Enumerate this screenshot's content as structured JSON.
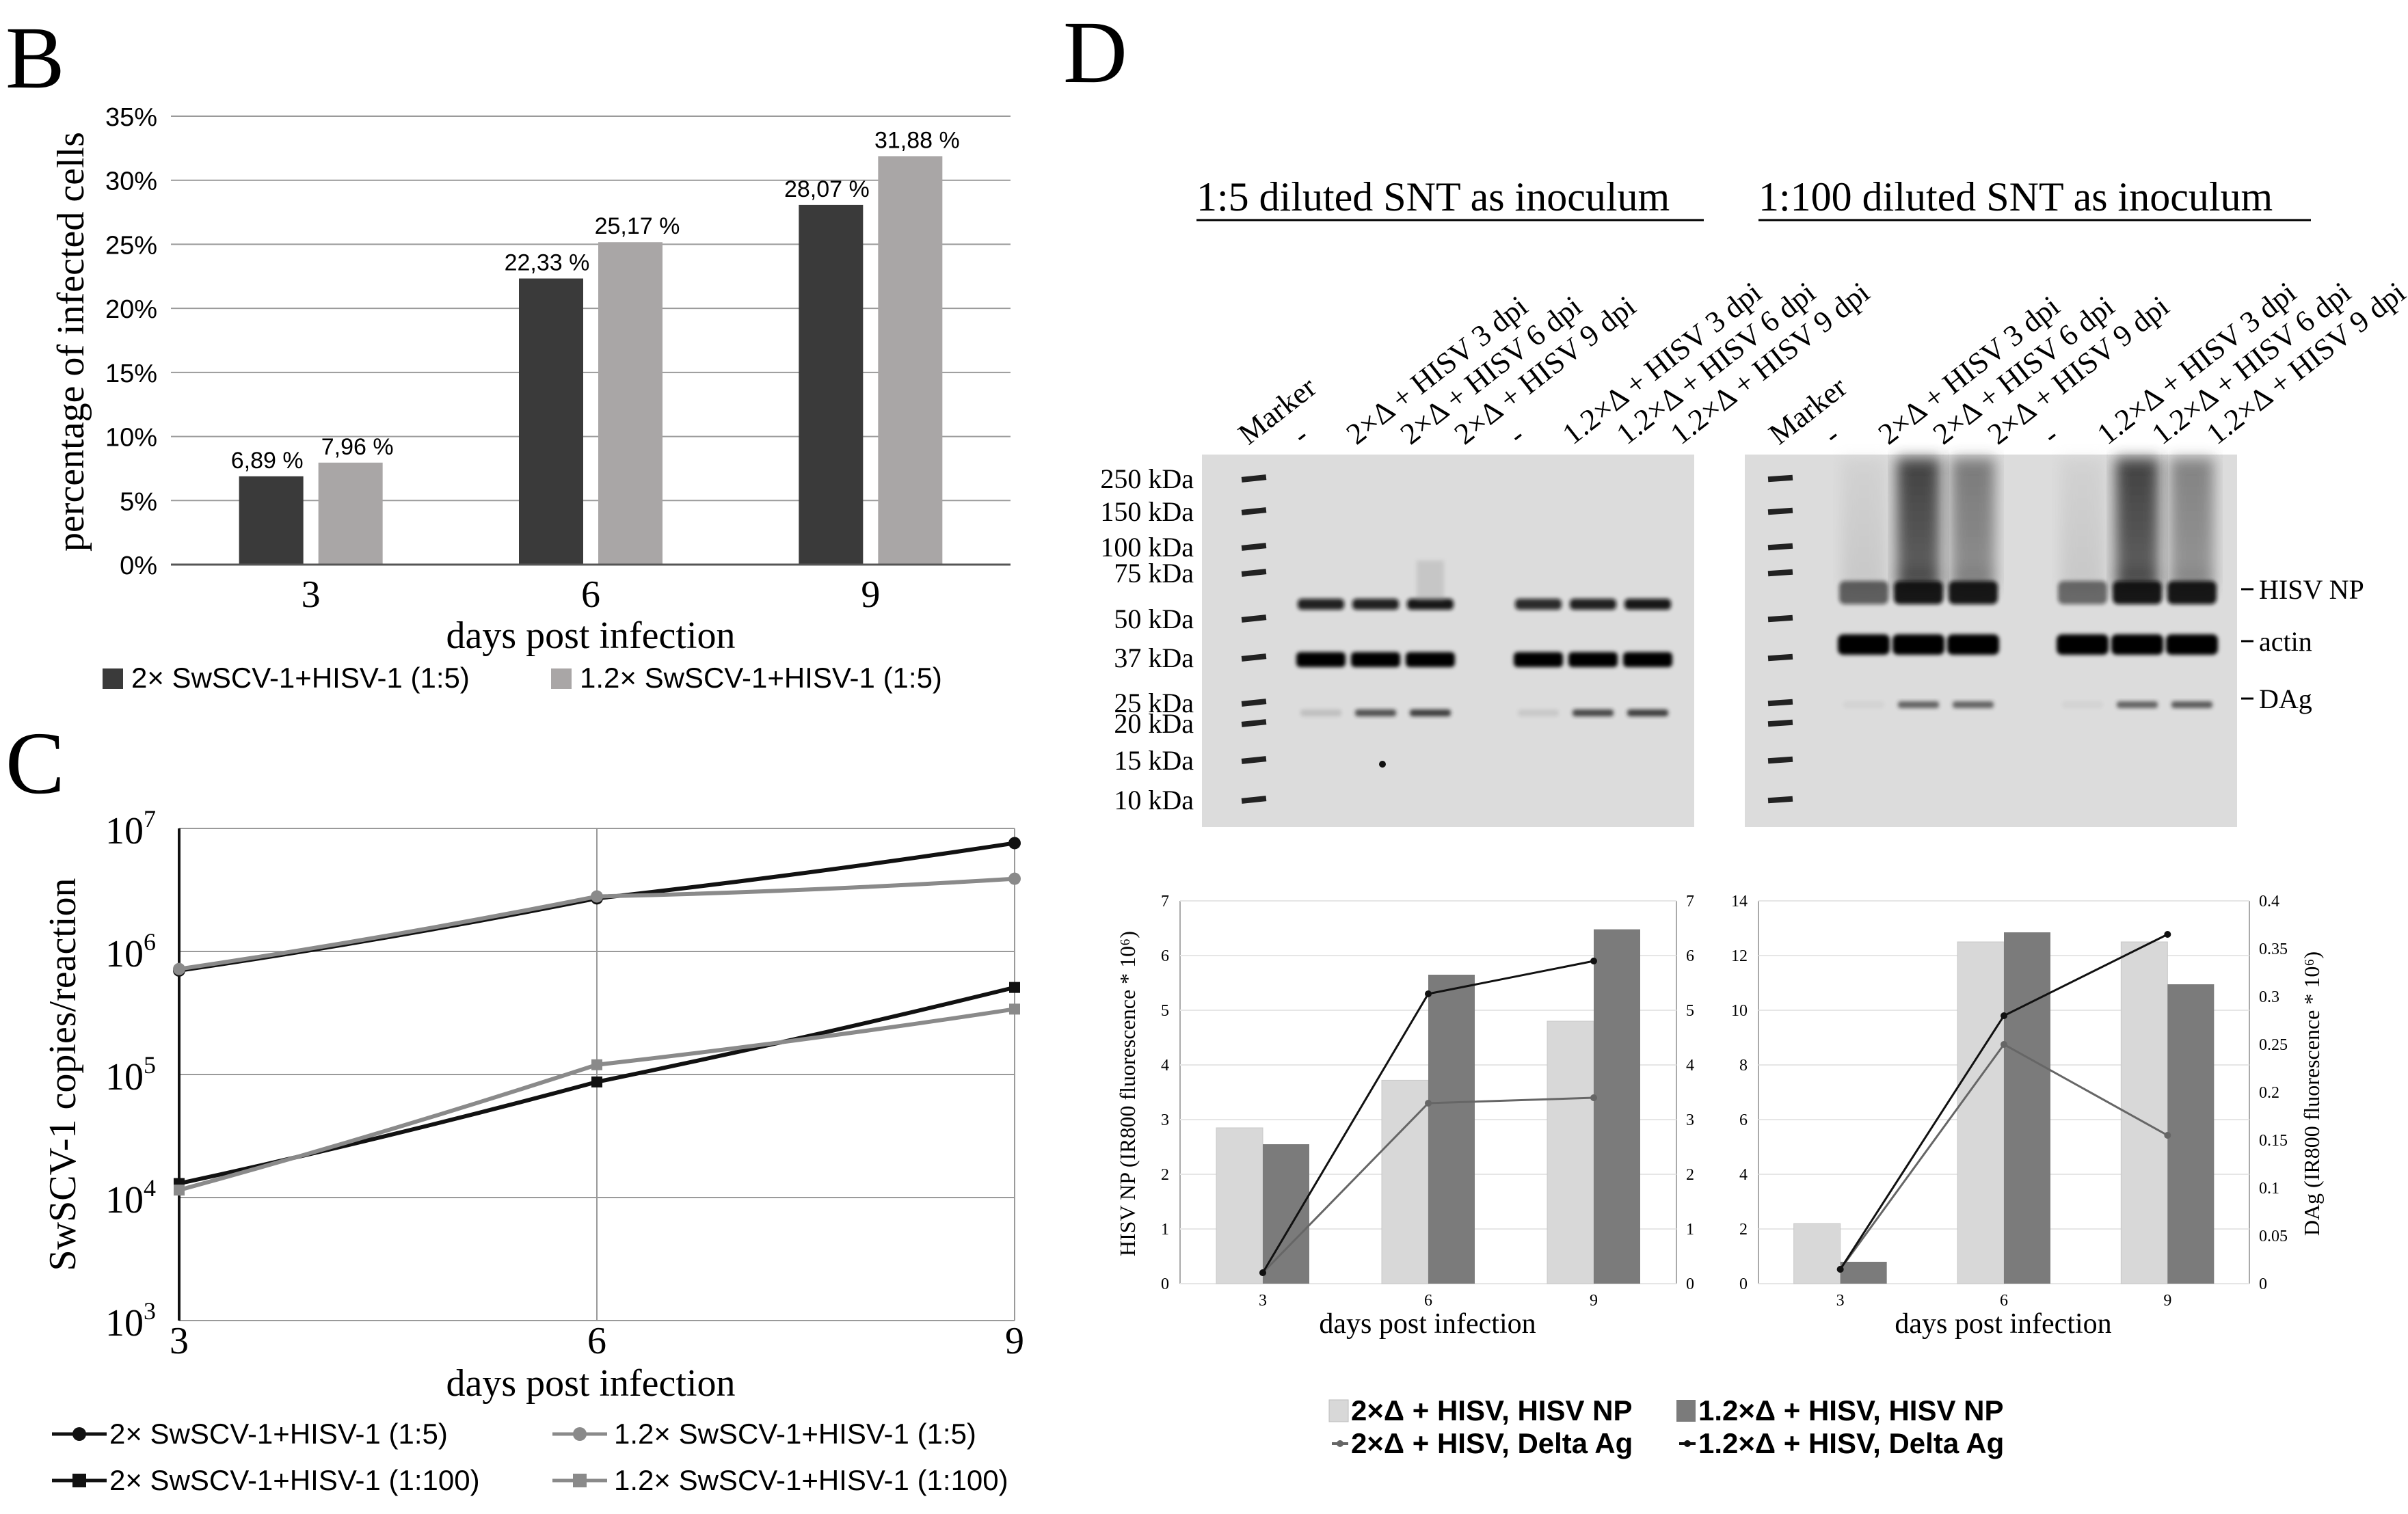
{
  "panels": {
    "B": {
      "letter": "B",
      "chart_data": {
        "type": "bar",
        "categories": [
          "3",
          "6",
          "9"
        ],
        "series": [
          {
            "name": "2× SwSCV-1+HISV-1 (1:5)",
            "values": [
              6.89,
              22.33,
              28.07
            ],
            "labels": [
              "6,89 %",
              "22,33 %",
              "28,07 %"
            ],
            "color": "#3a3a3a"
          },
          {
            "name": "1.2× SwSCV-1+HISV-1 (1:5)",
            "values": [
              7.96,
              25.17,
              31.88
            ],
            "labels": [
              "7,96 %",
              "25,17 %",
              "31,88 %"
            ],
            "color": "#a9a6a6"
          }
        ],
        "yticks": [
          "0%",
          "5%",
          "10%",
          "15%",
          "20%",
          "25%",
          "30%",
          "35%"
        ],
        "ylim": [
          0,
          35
        ],
        "xlabel": "days post infection",
        "ylabel": "percentage of infected cells",
        "legend_position": "bottom",
        "grid": true
      }
    },
    "C": {
      "letter": "C",
      "chart_data": {
        "type": "line",
        "x": [
          3,
          6,
          9
        ],
        "xticks": [
          "3",
          "6",
          "9"
        ],
        "yscale": "log",
        "ylim": [
          1000,
          10000000
        ],
        "yticks": [
          {
            "base": "10",
            "exp": "3"
          },
          {
            "base": "10",
            "exp": "4"
          },
          {
            "base": "10",
            "exp": "5"
          },
          {
            "base": "10",
            "exp": "6"
          },
          {
            "base": "10",
            "exp": "7"
          }
        ],
        "series": [
          {
            "name": "2× SwSCV-1+HISV-1 (1:5)",
            "values": [
              700000,
              2700000,
              7600000
            ],
            "color": "#111111",
            "marker": "circle"
          },
          {
            "name": "1.2× SwSCV-1+HISV-1 (1:5)",
            "values": [
              720000,
              2800000,
              3900000
            ],
            "color": "#8a8a8a",
            "marker": "circle"
          },
          {
            "name": "2× SwSCV-1+HISV-1 (1:100)",
            "values": [
              13000,
              87000,
              510000
            ],
            "color": "#111111",
            "marker": "square"
          },
          {
            "name": "1.2× SwSCV-1+HISV-1 (1:100)",
            "values": [
              11500,
              120000,
              340000
            ],
            "color": "#8a8a8a",
            "marker": "square"
          }
        ],
        "xlabel": "days post infection",
        "ylabel": "SwSCV-1 copies/reaction",
        "legend_position": "bottom",
        "grid": true
      }
    },
    "D": {
      "letter": "D",
      "blot_left": {
        "title": "1:5 diluted SNT as inoculum",
        "lanes": [
          "Marker",
          "-",
          "2×Δ + HISV 3 dpi",
          "2×Δ + HISV 6 dpi",
          "2×Δ + HISV 9 dpi",
          "-",
          "1.2×Δ + HISV 3 dpi",
          "1.2×Δ + HISV 6 dpi",
          "1.2×Δ + HISV 9 dpi"
        ],
        "markers": [
          "250 kDa",
          "150 kDa",
          "100 kDa",
          "75 kDa",
          "50 kDa",
          "37 kDa",
          "25 kDa",
          "20 kDa",
          "15 kDa",
          "10 kDa"
        ]
      },
      "blot_right": {
        "title": "1:100 diluted SNT as inoculum",
        "lanes": [
          "Marker",
          "-",
          "2×Δ + HISV 3 dpi",
          "2×Δ + HISV 6 dpi",
          "2×Δ + HISV 9 dpi",
          "-",
          "1.2×Δ + HISV 3 dpi",
          "1.2×Δ + HISV 6 dpi",
          "1.2×Δ + HISV 9 dpi"
        ],
        "band_labels": [
          "HISV NP",
          "actin",
          "DAg"
        ]
      },
      "chart_data": [
        {
          "type": "bar",
          "categories": [
            "3",
            "6",
            "9"
          ],
          "series": [
            {
              "name": "2×Δ + HISV, HISV NP",
              "values": [
                2.85,
                3.72,
                4.8
              ],
              "color": "#d8d8d8"
            },
            {
              "name": "1.2×Δ + HISV, HISV NP",
              "values": [
                2.55,
                5.65,
                6.48
              ],
              "color": "#7b7b7b"
            }
          ],
          "lines": [
            {
              "name": "2×Δ + HISV, Delta Ag",
              "values": [
                0.2,
                3.3,
                3.4
              ],
              "color": "#666666"
            },
            {
              "name": "1.2×Δ + HISV, Delta Ag",
              "values": [
                0.2,
                5.3,
                5.9
              ],
              "color": "#111111"
            }
          ],
          "ylim": [
            0,
            7
          ],
          "yticks": [
            "0",
            "1",
            "2",
            "3",
            "4",
            "5",
            "6",
            "7"
          ],
          "y2ticks": [
            "0",
            "1",
            "2",
            "3",
            "4",
            "5",
            "6",
            "7"
          ],
          "xlabel": "days post infection",
          "ylabel": "HISV NP (IR800 fluorescence * 10⁶)"
        },
        {
          "type": "bar",
          "categories": [
            "3",
            "6",
            "9"
          ],
          "series": [
            {
              "name": "2×Δ + HISV, HISV NP",
              "values": [
                2.2,
                12.5,
                12.5
              ],
              "color": "#d8d8d8"
            },
            {
              "name": "1.2×Δ + HISV, HISV NP",
              "values": [
                0.8,
                12.85,
                10.95
              ],
              "color": "#7b7b7b"
            }
          ],
          "lines": [
            {
              "name": "2×Δ + HISV, Delta Ag",
              "values": [
                0.015,
                0.25,
                0.155
              ],
              "color": "#666666"
            },
            {
              "name": "1.2×Δ + HISV, Delta Ag",
              "values": [
                0.015,
                0.28,
                0.365
              ],
              "color": "#111111"
            }
          ],
          "ylim": [
            0,
            14
          ],
          "y2lim": [
            0,
            0.4
          ],
          "yticks": [
            "0",
            "2",
            "4",
            "6",
            "8",
            "10",
            "12",
            "14"
          ],
          "y2ticks": [
            "0",
            "0.05",
            "0.1",
            "0.15",
            "0.2",
            "0.25",
            "0.3",
            "0.35",
            "0.4"
          ],
          "xlabel": "days post infection",
          "y2label": "DAg (IR800 fluorescence * 10⁶)"
        }
      ],
      "legend": [
        "2×Δ + HISV, HISV NP",
        "1.2×Δ + HISV, HISV NP",
        "2×Δ + HISV, Delta Ag",
        "1.2×Δ + HISV, Delta Ag"
      ]
    }
  }
}
